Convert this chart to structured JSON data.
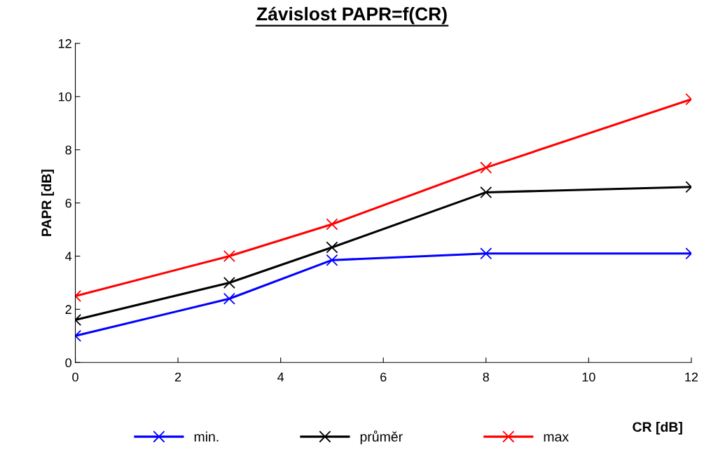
{
  "chart_data": {
    "type": "line",
    "title": "Závislost PAPR=f(CR)",
    "xlabel": "CR [dB]",
    "ylabel": "PAPR [dB]",
    "x": [
      0,
      3,
      5,
      8,
      12
    ],
    "series": [
      {
        "name": "min.",
        "color": "#0000ff",
        "values": [
          1.0,
          2.4,
          3.85,
          4.1,
          4.1
        ]
      },
      {
        "name": "průměr",
        "color": "#000000",
        "values": [
          1.6,
          3.0,
          4.33,
          6.4,
          6.6
        ]
      },
      {
        "name": "max",
        "color": "#ff0000",
        "values": [
          2.5,
          4.0,
          5.2,
          7.33,
          9.9
        ]
      }
    ],
    "xlim": [
      0,
      12
    ],
    "xticks": [
      0,
      2,
      4,
      6,
      8,
      10,
      12
    ],
    "ylim": [
      0,
      12
    ],
    "yticks": [
      0,
      2,
      4,
      6,
      8,
      10,
      12
    ],
    "grid": false,
    "legend": "bottom",
    "marker": "cross",
    "line_style": "solid"
  }
}
